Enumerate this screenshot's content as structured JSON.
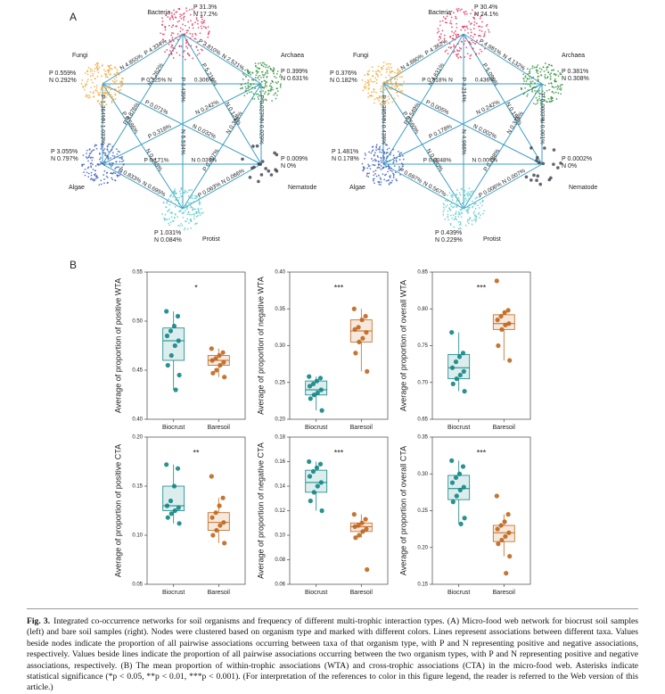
{
  "panel_labels": {
    "a": "A",
    "b": "B"
  },
  "networks": [
    {
      "nodes": [
        {
          "name": "Bacteria",
          "p": "P 31.3%",
          "n": "N 17.2%"
        },
        {
          "name": "Archaea",
          "p": "P 0.399%",
          "n": "N 0.631%"
        },
        {
          "name": "Nematode",
          "p": "P 0.009%",
          "n": "N 0%"
        },
        {
          "name": "Protist",
          "p": "P 1.031%",
          "n": "N 0.084%"
        },
        {
          "name": "Algae",
          "p": "P 3.055%",
          "n": "N 0.797%"
        },
        {
          "name": "Fungi",
          "p": "P 0.559%",
          "n": "N 0.292%"
        }
      ],
      "edges": [
        [
          "P 4.334%",
          "N 4.855%"
        ],
        [
          "P 3.810%",
          "N 2.521%"
        ],
        [
          "N 7.262%",
          "P 4.876%"
        ],
        [
          "P 4.439%",
          "N 5.534%"
        ],
        [
          "P 5.216%",
          "N 0.121%"
        ],
        [
          "P 0.225% N",
          "0.306%"
        ],
        [
          "P 0.071%",
          "N 0.032%"
        ],
        [
          "P 0.586%",
          "N 0.448%"
        ],
        [
          "P 1.364%",
          "N 1.033%"
        ],
        [
          "N 0.242%",
          "P 0.318%"
        ],
        [
          "N 0.396%",
          "P 0.407%"
        ],
        [
          "P 0.023%",
          "N 0.029%"
        ],
        [
          "P 0.171%",
          "N 0.037%"
        ],
        [
          "P 0.833%",
          "N 0.695%"
        ],
        [
          "P 0.063%",
          "N 0.066%"
        ]
      ]
    },
    {
      "nodes": [
        {
          "name": "Bacteria",
          "p": "P 30.4%",
          "n": "N 24.1%"
        },
        {
          "name": "Archaea",
          "p": "P 0.381%",
          "n": "N 0.308%"
        },
        {
          "name": "Nematode",
          "p": "P 0.0002%",
          "n": "N 0%"
        },
        {
          "name": "Protist",
          "p": "P 0.439%",
          "n": "N 0.229%"
        },
        {
          "name": "Algae",
          "p": "P 1.481%",
          "n": "N 0.178%"
        },
        {
          "name": "Fungi",
          "p": "P 0.376%",
          "n": "N 0.182%"
        }
      ],
      "edges": [
        [
          "P 4.362%",
          "N 4.880%"
        ],
        [
          "P 4.981%",
          "N 4.132%"
        ],
        [
          "N 4.631%",
          "P 3.549%"
        ],
        [
          "P 3.214%",
          "N 4.966%"
        ],
        [
          "P 5.096%",
          "N 0.150%"
        ],
        [
          "P 0.318% N",
          "0.436%"
        ],
        [
          "P 0.005%",
          "N 0.002%"
        ],
        [
          "P 0.560%",
          "N 0.380%"
        ],
        [
          "P 0.385%",
          "N 0.436%"
        ],
        [
          "N 0.242%",
          "P 0.178%"
        ],
        [
          "N 0.376%",
          "P 0.288%"
        ],
        [
          "P 0.0003%",
          "N 0.001%"
        ],
        [
          "P 0.0048%",
          "N 0.007%"
        ],
        [
          "P 0.697%",
          "N 0.567%"
        ],
        [
          "P 0.006%",
          "N 0.007%"
        ]
      ]
    }
  ],
  "chart_data": [
    {
      "type": "box",
      "y_label": "Average of proportion of positive WTA",
      "significance": "*",
      "ylim": [
        0.4,
        0.55
      ],
      "yticks": [
        {
          "value": 0.4,
          "label": "0.40"
        },
        0.45,
        {
          "value": 0.5,
          "label": "0.50"
        },
        0.55
      ],
      "boxes": [
        {
          "name": "Biocrust",
          "color": "#138585",
          "min": 0.43,
          "q1": 0.46,
          "median": 0.48,
          "q3": 0.493,
          "max": 0.51,
          "points": [
            0.51,
            0.505,
            0.495,
            0.49,
            0.485,
            0.48,
            0.475,
            0.465,
            0.455,
            0.445,
            0.43
          ]
        },
        {
          "name": "Baresoil",
          "color": "#c0661c",
          "min": 0.443,
          "q1": 0.455,
          "median": 0.46,
          "q3": 0.465,
          "max": 0.472,
          "points": [
            0.472,
            0.468,
            0.465,
            0.462,
            0.46,
            0.458,
            0.455,
            0.45,
            0.447,
            0.443
          ]
        }
      ]
    },
    {
      "type": "box",
      "y_label": "Average of proportion of negative WTA",
      "significance": "***",
      "ylim": [
        0.2,
        0.4
      ],
      "yticks": [
        {
          "value": 0.2,
          "label": "0.20"
        },
        0.25,
        {
          "value": 0.3,
          "label": "0.30"
        },
        0.35,
        {
          "value": 0.4,
          "label": "0.40"
        }
      ],
      "boxes": [
        {
          "name": "Biocrust",
          "color": "#138585",
          "min": 0.212,
          "q1": 0.233,
          "median": 0.24,
          "q3": 0.252,
          "max": 0.258,
          "points": [
            0.258,
            0.256,
            0.252,
            0.248,
            0.245,
            0.24,
            0.236,
            0.233,
            0.228,
            0.212
          ]
        },
        {
          "name": "Baresoil",
          "color": "#c0661c",
          "min": 0.265,
          "q1": 0.305,
          "median": 0.32,
          "q3": 0.335,
          "max": 0.35,
          "points": [
            0.35,
            0.34,
            0.335,
            0.325,
            0.322,
            0.318,
            0.31,
            0.305,
            0.29,
            0.265
          ]
        }
      ]
    },
    {
      "type": "box",
      "y_label": "Average of proportion of overall WTA",
      "significance": "***",
      "ylim": [
        0.65,
        0.85
      ],
      "yticks": [
        0.65,
        {
          "value": 0.7,
          "label": "0.70"
        },
        0.75,
        {
          "value": 0.8,
          "label": "0.80"
        },
        0.85
      ],
      "boxes": [
        {
          "name": "Biocrust",
          "color": "#138585",
          "min": 0.688,
          "q1": 0.705,
          "median": 0.72,
          "q3": 0.738,
          "max": 0.768,
          "points": [
            0.768,
            0.74,
            0.735,
            0.728,
            0.72,
            0.715,
            0.71,
            0.705,
            0.698,
            0.688
          ]
        },
        {
          "name": "Baresoil",
          "color": "#c0661c",
          "min": 0.73,
          "q1": 0.772,
          "median": 0.78,
          "q3": 0.792,
          "max": 0.798,
          "points": [
            0.838,
            0.798,
            0.795,
            0.79,
            0.785,
            0.78,
            0.778,
            0.772,
            0.75,
            0.73
          ]
        }
      ]
    },
    {
      "type": "box",
      "y_label": "Average of proportion of positive CTA",
      "significance": "**",
      "ylim": [
        0.05,
        0.2
      ],
      "yticks": [
        0.05,
        {
          "value": 0.1,
          "label": "0.10"
        },
        0.15,
        {
          "value": 0.2,
          "label": "0.20"
        }
      ],
      "boxes": [
        {
          "name": "Biocrust",
          "color": "#138585",
          "min": 0.112,
          "q1": 0.125,
          "median": 0.13,
          "q3": 0.15,
          "max": 0.172,
          "points": [
            0.172,
            0.168,
            0.15,
            0.135,
            0.13,
            0.128,
            0.125,
            0.122,
            0.118,
            0.112
          ]
        },
        {
          "name": "Baresoil",
          "color": "#c0661c",
          "min": 0.092,
          "q1": 0.105,
          "median": 0.113,
          "q3": 0.123,
          "max": 0.138,
          "points": [
            0.16,
            0.138,
            0.13,
            0.123,
            0.118,
            0.113,
            0.11,
            0.105,
            0.1,
            0.092
          ]
        }
      ]
    },
    {
      "type": "box",
      "y_label": "Average of proportion of negative CTA",
      "significance": "***",
      "ylim": [
        0.06,
        0.18
      ],
      "yticks": [
        0.06,
        0.08,
        {
          "value": 0.1,
          "label": "0.10"
        },
        0.12,
        0.14,
        0.16,
        0.18
      ],
      "boxes": [
        {
          "name": "Biocrust",
          "color": "#138585",
          "min": 0.12,
          "q1": 0.135,
          "median": 0.143,
          "q3": 0.153,
          "max": 0.16,
          "points": [
            0.16,
            0.158,
            0.155,
            0.152,
            0.148,
            0.143,
            0.14,
            0.135,
            0.128,
            0.12
          ]
        },
        {
          "name": "Baresoil",
          "color": "#c0661c",
          "min": 0.098,
          "q1": 0.103,
          "median": 0.107,
          "q3": 0.11,
          "max": 0.117,
          "points": [
            0.117,
            0.113,
            0.11,
            0.108,
            0.107,
            0.105,
            0.103,
            0.1,
            0.098,
            0.072
          ]
        }
      ]
    },
    {
      "type": "box",
      "y_label": "Average of proportion of overall CTA",
      "significance": "***",
      "ylim": [
        0.15,
        0.35
      ],
      "yticks": [
        0.15,
        {
          "value": 0.2,
          "label": "0.20"
        },
        0.25,
        {
          "value": 0.3,
          "label": "0.30"
        },
        0.35
      ],
      "boxes": [
        {
          "name": "Biocrust",
          "color": "#138585",
          "min": 0.232,
          "q1": 0.265,
          "median": 0.28,
          "q3": 0.298,
          "max": 0.318,
          "points": [
            0.318,
            0.31,
            0.3,
            0.295,
            0.288,
            0.282,
            0.278,
            0.27,
            0.262,
            0.24,
            0.232
          ]
        },
        {
          "name": "Baresoil",
          "color": "#c0661c",
          "min": 0.188,
          "q1": 0.208,
          "median": 0.22,
          "q3": 0.23,
          "max": 0.245,
          "points": [
            0.27,
            0.245,
            0.235,
            0.23,
            0.225,
            0.22,
            0.215,
            0.21,
            0.205,
            0.188,
            0.165
          ]
        }
      ]
    }
  ],
  "caption": {
    "label": "Fig. 3.",
    "text": "Integrated co-occurrence networks for soil organisms and frequency of different multi-trophic interaction types. (A) Micro-food web network for biocrust soil samples (left) and bare soil samples (right). Nodes were clustered based on organism type and marked with different colors. Lines represent associations between different taxa. Values beside nodes indicate the proportion of all pairwise associations occurring between taxa of that organism type, with P and N representing positive and negative associations, respectively. Values beside lines indicate the proportion of all pairwise associations occurring between the two organism types, with P and N representing positive and negative associations, respectively. (B) The mean proportion of within-trophic associations (WTA) and cross-trophic associations (CTA) in the micro-food web. Asterisks indicate statistical significance (*p < 0.05, **p < 0.01, ***p < 0.001). (For interpretation of the references to color in this figure legend, the reader is referred to the Web version of this article.)"
  }
}
